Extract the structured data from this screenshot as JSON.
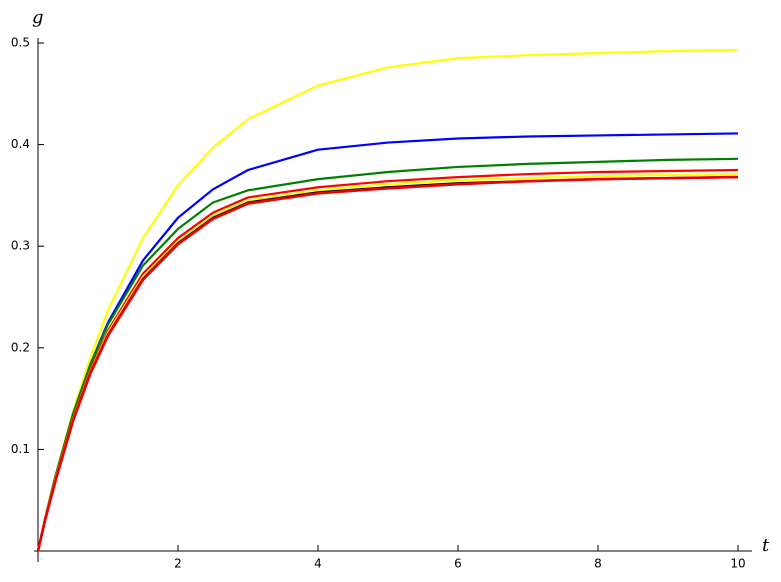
{
  "chart_data": {
    "type": "line",
    "x_label": "t",
    "y_label": "g",
    "x": [
      0,
      0.1,
      0.25,
      0.5,
      0.75,
      1,
      1.5,
      2,
      2.5,
      3,
      4,
      5,
      6,
      7,
      8,
      9,
      10
    ],
    "series": [
      {
        "color": "#ffff00",
        "values": [
          0,
          0.031,
          0.074,
          0.137,
          0.191,
          0.237,
          0.308,
          0.36,
          0.397,
          0.425,
          0.458,
          0.476,
          0.485,
          0.488,
          0.49,
          0.492,
          0.493
        ]
      },
      {
        "color": "#0000ff",
        "values": [
          0,
          0.031,
          0.073,
          0.134,
          0.184,
          0.225,
          0.286,
          0.328,
          0.356,
          0.375,
          0.395,
          0.402,
          0.406,
          0.408,
          0.409,
          0.41,
          0.411
        ]
      },
      {
        "color": "#008000",
        "values": [
          0,
          0.032,
          0.074,
          0.135,
          0.184,
          0.223,
          0.281,
          0.317,
          0.343,
          0.355,
          0.366,
          0.373,
          0.378,
          0.381,
          0.383,
          0.385,
          0.386
        ]
      },
      {
        "color": "#ff0000",
        "values": [
          0,
          0.031,
          0.072,
          0.131,
          0.179,
          0.217,
          0.273,
          0.308,
          0.333,
          0.348,
          0.358,
          0.364,
          0.368,
          0.371,
          0.373,
          0.374,
          0.375
        ]
      },
      {
        "color": "#ffff00",
        "values": [
          0,
          0.031,
          0.071,
          0.13,
          0.177,
          0.215,
          0.27,
          0.305,
          0.33,
          0.345,
          0.355,
          0.361,
          0.365,
          0.367,
          0.369,
          0.37,
          0.371
        ]
      },
      {
        "color": "#000000",
        "values": [
          0,
          0.03,
          0.07,
          0.129,
          0.176,
          0.213,
          0.268,
          0.303,
          0.328,
          0.343,
          0.353,
          0.358,
          0.362,
          0.364,
          0.366,
          0.367,
          0.368
        ]
      },
      {
        "color": "#ee0000",
        "values": [
          0,
          0.03,
          0.069,
          0.128,
          0.175,
          0.212,
          0.267,
          0.302,
          0.327,
          0.342,
          0.352,
          0.357,
          0.361,
          0.364,
          0.366,
          0.367,
          0.368
        ]
      }
    ],
    "xlim": [
      0,
      10
    ],
    "ylim": [
      0,
      0.5
    ],
    "xticks": [
      2,
      4,
      6,
      8,
      10
    ],
    "yticks": [
      0.1,
      0.2,
      0.3,
      0.4,
      0.5
    ]
  }
}
